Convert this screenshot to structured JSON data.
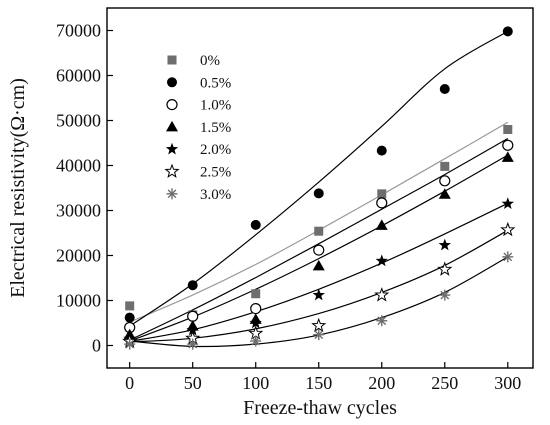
{
  "chart_data": {
    "type": "scatter",
    "xlabel": "Freeze-thaw cycles",
    "ylabel": "Electrical resistivity(Ω·cm)",
    "xlim": [
      -18,
      320
    ],
    "ylim": [
      -5000,
      75000
    ],
    "x_ticks": [
      0,
      50,
      100,
      150,
      200,
      250,
      300
    ],
    "y_ticks": [
      0,
      10000,
      20000,
      30000,
      40000,
      50000,
      60000,
      70000
    ],
    "x": [
      0,
      50,
      100,
      150,
      200,
      250,
      300
    ],
    "legend_position": "top-left",
    "grid": false,
    "series": [
      {
        "name": "0%",
        "marker": "square",
        "color": "#6e6e6e",
        "fit_color": "#9a9a9a",
        "values": [
          8800,
          6800,
          11500,
          25400,
          33700,
          39800,
          48000
        ],
        "fit": [
          5200,
          11200,
          18000,
          25600,
          33500,
          41500,
          49600
        ]
      },
      {
        "name": "0.5%",
        "marker": "circle",
        "color": "#000000",
        "fit_color": "#000000",
        "values": [
          6200,
          13400,
          26800,
          33800,
          43300,
          57000,
          69800
        ],
        "fit": [
          4300,
          13700,
          24600,
          36300,
          48700,
          61500,
          69800
        ]
      },
      {
        "name": "1.0%",
        "marker": "circle-open",
        "color": "#000000",
        "fit_color": "#000000",
        "values": [
          4000,
          6500,
          8200,
          21200,
          31700,
          36600,
          44500
        ],
        "fit": [
          1200,
          7900,
          15100,
          22600,
          30300,
          38000,
          46000
        ]
      },
      {
        "name": "1.5%",
        "marker": "triangle",
        "color": "#000000",
        "fit_color": "#000000",
        "values": [
          2400,
          4300,
          5800,
          17700,
          26700,
          33600,
          41800
        ],
        "fit": [
          1000,
          6300,
          12500,
          19300,
          26600,
          34300,
          42300
        ]
      },
      {
        "name": "2.0%",
        "marker": "star",
        "color": "#000000",
        "fit_color": "#000000",
        "values": [
          1500,
          3400,
          5000,
          11200,
          18800,
          22300,
          31500
        ],
        "fit": [
          900,
          3500,
          7500,
          12500,
          18300,
          24800,
          31600
        ]
      },
      {
        "name": "2.5%",
        "marker": "star-open",
        "color": "#000000",
        "fit_color": "#000000",
        "values": [
          900,
          1600,
          2700,
          4400,
          11200,
          16900,
          25700
        ],
        "fit": [
          800,
          1600,
          3700,
          7100,
          11800,
          17800,
          25600
        ]
      },
      {
        "name": "3.0%",
        "marker": "asterisk",
        "color": "#6e6e6e",
        "fit_color": "#000000",
        "values": [
          300,
          300,
          1000,
          2400,
          5500,
          11200,
          19700
        ],
        "fit": [
          1000,
          -200,
          300,
          2300,
          6200,
          11800,
          19700
        ]
      }
    ]
  }
}
